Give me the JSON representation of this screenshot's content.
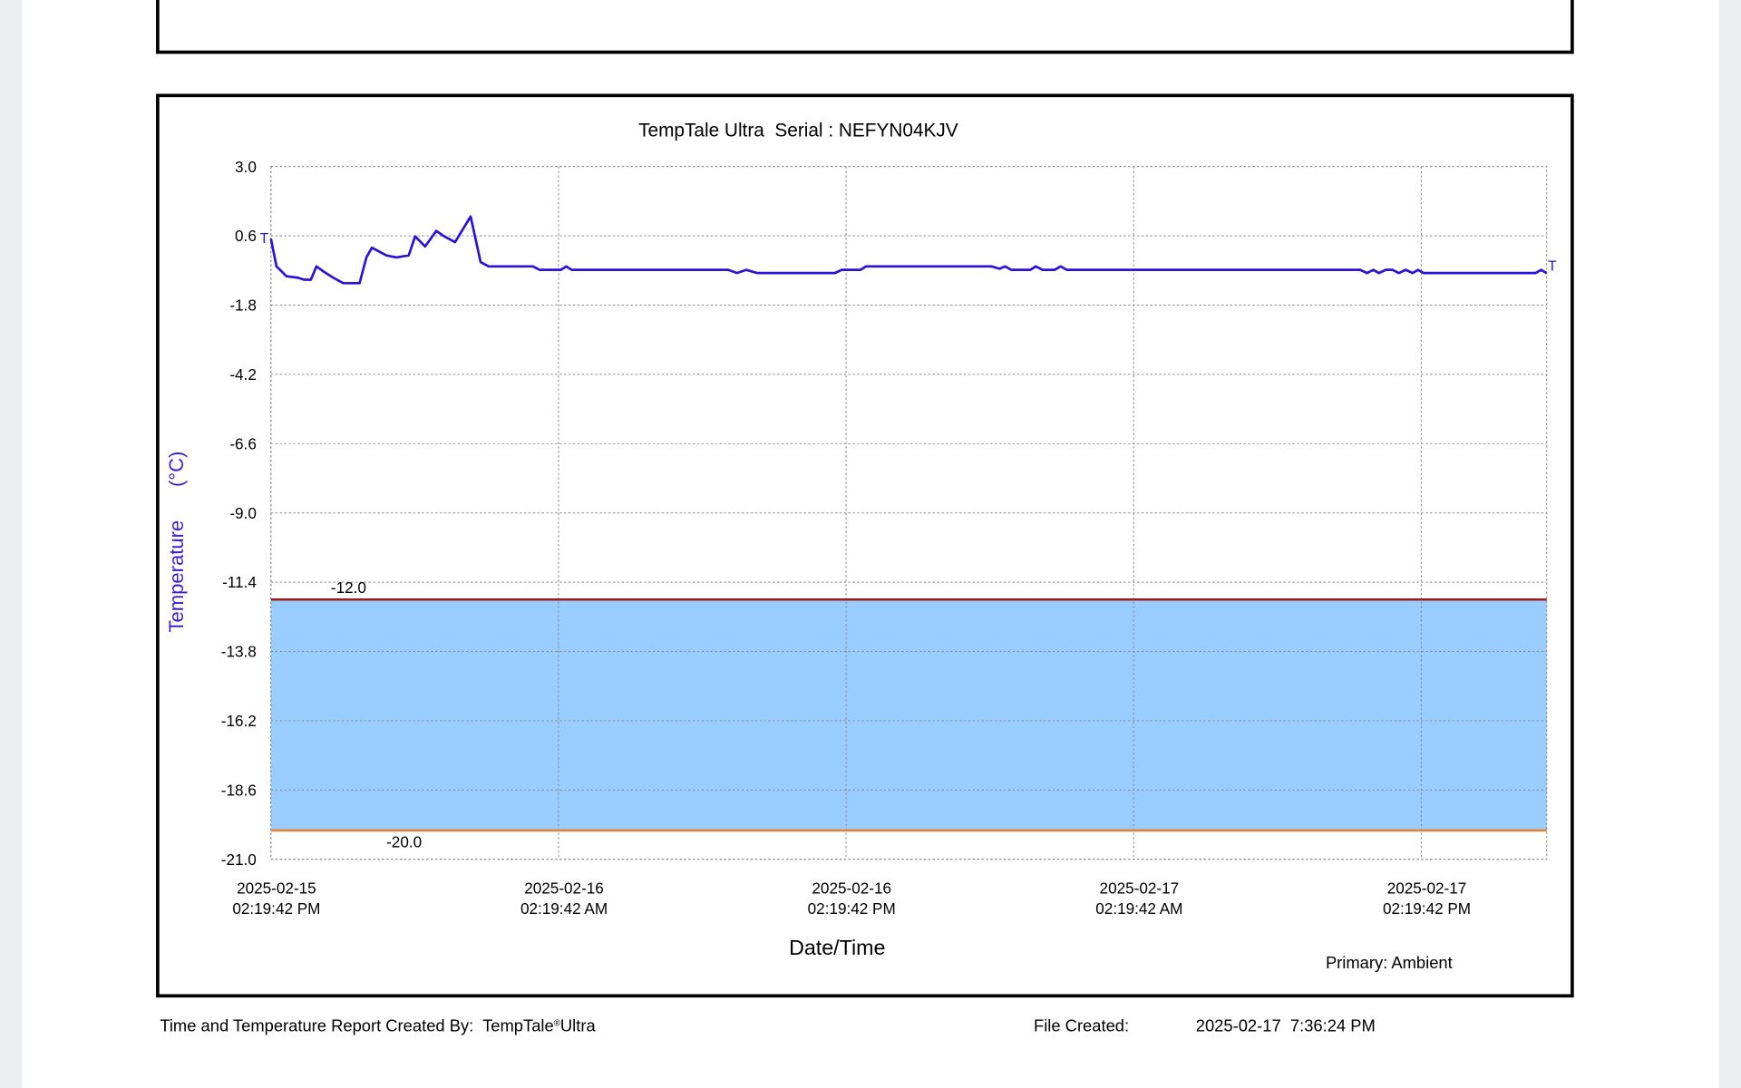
{
  "chart_data": {
    "type": "line",
    "title": "TempTale Ultra  Serial : NEFYN04KJV",
    "x_label": "Date/Time",
    "y_label": "Temperature      (°C)",
    "legend_text": "Primary: Ambient",
    "start_marker": "T",
    "end_marker": "T",
    "x": [
      "2025-02-15T14:19:42",
      "2025-02-15T14:33:42",
      "2025-02-15T14:58:42",
      "2025-02-15T15:26:42",
      "2025-02-15T15:42:42",
      "2025-02-15T15:59:42",
      "2025-02-15T16:13:42",
      "2025-02-15T16:32:42",
      "2025-02-15T16:55:42",
      "2025-02-15T17:20:42",
      "2025-02-15T18:01:42",
      "2025-02-15T18:18:42",
      "2025-02-15T18:32:42",
      "2025-02-15T19:08:42",
      "2025-02-15T19:33:42",
      "2025-02-15T20:04:42",
      "2025-02-15T20:20:42",
      "2025-02-15T20:45:42",
      "2025-02-15T21:13:42",
      "2025-02-15T21:33:42",
      "2025-02-15T22:00:42",
      "2025-02-15T22:39:42",
      "2025-02-15T23:04:42",
      "2025-02-15T23:24:42",
      "2025-02-16T01:15:42",
      "2025-02-16T01:32:42",
      "2025-02-16T02:25:42",
      "2025-02-16T02:38:42",
      "2025-02-16T02:52:42",
      "2025-02-16T09:24:42",
      "2025-02-16T09:46:42",
      "2025-02-16T10:09:42",
      "2025-02-16T10:37:42",
      "2025-02-16T13:51:42",
      "2025-02-16T14:08:42",
      "2025-02-16T14:55:42",
      "2025-02-16T15:09:42",
      "2025-02-16T20:23:42",
      "2025-02-16T20:43:42",
      "2025-02-16T20:57:42",
      "2025-02-16T21:13:42",
      "2025-02-16T22:00:42",
      "2025-02-16T22:14:42",
      "2025-02-16T22:31:42",
      "2025-02-16T23:01:42",
      "2025-02-16T23:16:42",
      "2025-02-16T23:32:42",
      "2025-02-17T11:46:42",
      "2025-02-17T12:03:42",
      "2025-02-17T12:19:42",
      "2025-02-17T12:33:42",
      "2025-02-17T12:50:42",
      "2025-02-17T13:07:42",
      "2025-02-17T13:23:42",
      "2025-02-17T13:40:42",
      "2025-02-17T13:57:42",
      "2025-02-17T14:11:42",
      "2025-02-17T14:25:42",
      "2025-02-17T19:05:42",
      "2025-02-17T19:19:42",
      "2025-02-17T19:33:42"
    ],
    "series": [
      {
        "color": "#2b12d4",
        "values": [
          0.5,
          -0.46,
          -0.8,
          -0.85,
          -0.92,
          -0.92,
          -0.46,
          -0.65,
          -0.85,
          -1.04,
          -1.04,
          -0.15,
          0.19,
          -0.08,
          -0.15,
          -0.08,
          0.58,
          0.23,
          0.77,
          0.58,
          0.38,
          1.27,
          -0.31,
          -0.46,
          -0.46,
          -0.58,
          -0.58,
          -0.46,
          -0.58,
          -0.58,
          -0.69,
          -0.58,
          -0.69,
          -0.69,
          -0.58,
          -0.58,
          -0.46,
          -0.46,
          -0.54,
          -0.46,
          -0.58,
          -0.58,
          -0.46,
          -0.58,
          -0.58,
          -0.46,
          -0.58,
          -0.58,
          -0.69,
          -0.58,
          -0.69,
          -0.58,
          -0.58,
          -0.69,
          -0.58,
          -0.69,
          -0.58,
          -0.69,
          -0.69,
          -0.58,
          -0.69
        ]
      }
    ],
    "xlim": [
      "2025-02-15T14:19:42",
      "2025-02-17T19:33:42"
    ],
    "xticks": [
      {
        "value": "2025-02-15T14:19:42",
        "label": [
          "2025-02-15",
          "02:19:42 PM"
        ]
      },
      {
        "value": "2025-02-16T02:19:42",
        "label": [
          "2025-02-16",
          "02:19:42 AM"
        ]
      },
      {
        "value": "2025-02-16T14:19:42",
        "label": [
          "2025-02-16",
          "02:19:42 PM"
        ]
      },
      {
        "value": "2025-02-17T02:19:42",
        "label": [
          "2025-02-17",
          "02:19:42 AM"
        ]
      },
      {
        "value": "2025-02-17T14:19:42",
        "label": [
          "2025-02-17",
          "02:19:42 PM"
        ]
      }
    ],
    "ylim": [
      -21,
      3
    ],
    "yticks": [
      {
        "value": 3,
        "label": "3.0"
      },
      0.6,
      -1.8,
      -4.2,
      -6.6,
      {
        "value": -9,
        "label": "-9.0"
      },
      -11.4,
      -13.8,
      -16.2,
      -18.6,
      {
        "value": -21,
        "label": "-21.0"
      }
    ],
    "limits": [
      {
        "value": -12,
        "label": "-12.0",
        "color": "#9b1b1b"
      },
      {
        "value": -20,
        "label": "-20.0",
        "color": "#ef7b22"
      }
    ],
    "band_color": "#99ccff",
    "grid": true
  },
  "footer": {
    "created_by": "Time and Temperature Report Created By:  TempTale",
    "brand_mark": "®",
    "brand_suffix": "Ultra",
    "file_created_label": "File Created:",
    "file_created_value": "2025-02-17  7:36:24 PM"
  }
}
